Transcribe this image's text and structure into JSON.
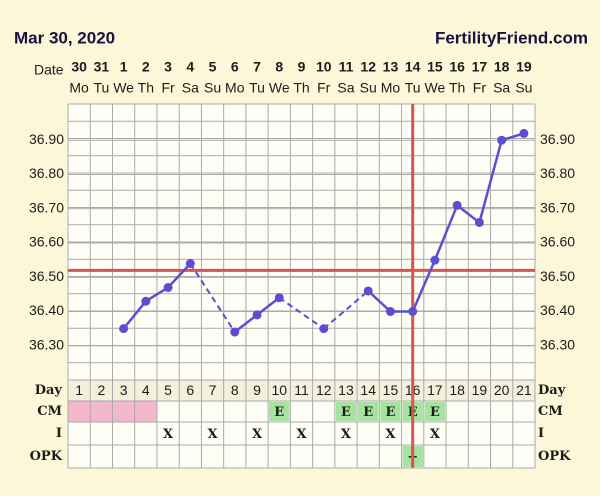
{
  "header": {
    "date": "Mar 30, 2020",
    "site": "FertilityFriend.com"
  },
  "chart_data": {
    "type": "line",
    "date_label": "Date",
    "categories": [
      "30",
      "31",
      "1",
      "2",
      "3",
      "4",
      "5",
      "6",
      "7",
      "8",
      "9",
      "10",
      "11",
      "12",
      "13",
      "14",
      "15",
      "16",
      "17",
      "18",
      "19"
    ],
    "weekdays": [
      "Mo",
      "Tu",
      "We",
      "Th",
      "Fr",
      "Sa",
      "Su",
      "Mo",
      "Tu",
      "We",
      "Th",
      "Fr",
      "Sa",
      "Su",
      "Mo",
      "Tu",
      "We",
      "Th",
      "Fr",
      "Sa",
      "Su"
    ],
    "values": [
      null,
      null,
      36.35,
      36.43,
      36.47,
      36.54,
      null,
      36.34,
      36.39,
      36.44,
      null,
      36.35,
      null,
      36.46,
      36.4,
      36.4,
      36.55,
      36.71,
      36.66,
      36.9,
      36.92
    ],
    "color": "#5a4fd0",
    "ylim": [
      36.2,
      37.0
    ],
    "yticks": [
      {
        "value": 36.3,
        "label": "36.30"
      },
      {
        "value": 36.4,
        "label": "36.40"
      },
      {
        "value": 36.5,
        "label": "36.50"
      },
      {
        "value": 36.6,
        "label": "36.60"
      },
      {
        "value": 36.7,
        "label": "36.70"
      },
      {
        "value": 36.8,
        "label": "36.80"
      },
      {
        "value": 36.9,
        "label": "36.90"
      }
    ],
    "grid": true,
    "coverline": 36.52,
    "ovulation_day": 16,
    "line_color": "#d9534f",
    "table": {
      "day": {
        "label": "Day",
        "values": [
          1,
          2,
          3,
          4,
          5,
          6,
          7,
          8,
          9,
          10,
          11,
          12,
          13,
          14,
          15,
          16,
          17,
          18,
          19,
          20,
          21
        ]
      },
      "cm": {
        "label": "CM",
        "values": [
          null,
          null,
          null,
          null,
          null,
          null,
          null,
          null,
          null,
          "E",
          null,
          null,
          "E",
          "E",
          "E",
          "E",
          "E",
          null,
          null,
          null,
          null
        ]
      },
      "period_days": [
        1,
        2,
        3,
        4
      ],
      "period_color": "#f3b8cb",
      "intercourse": {
        "label": "I",
        "values": [
          null,
          null,
          null,
          null,
          "X",
          null,
          "X",
          null,
          "X",
          null,
          "X",
          null,
          "X",
          null,
          "X",
          null,
          "X",
          null,
          null,
          null,
          null
        ]
      },
      "opk": {
        "label": "OPK",
        "values": [
          null,
          null,
          null,
          null,
          null,
          null,
          null,
          null,
          null,
          null,
          null,
          null,
          null,
          null,
          null,
          "+",
          null,
          null,
          null,
          null,
          null
        ]
      },
      "mark_color": "#a6e3a0"
    }
  }
}
